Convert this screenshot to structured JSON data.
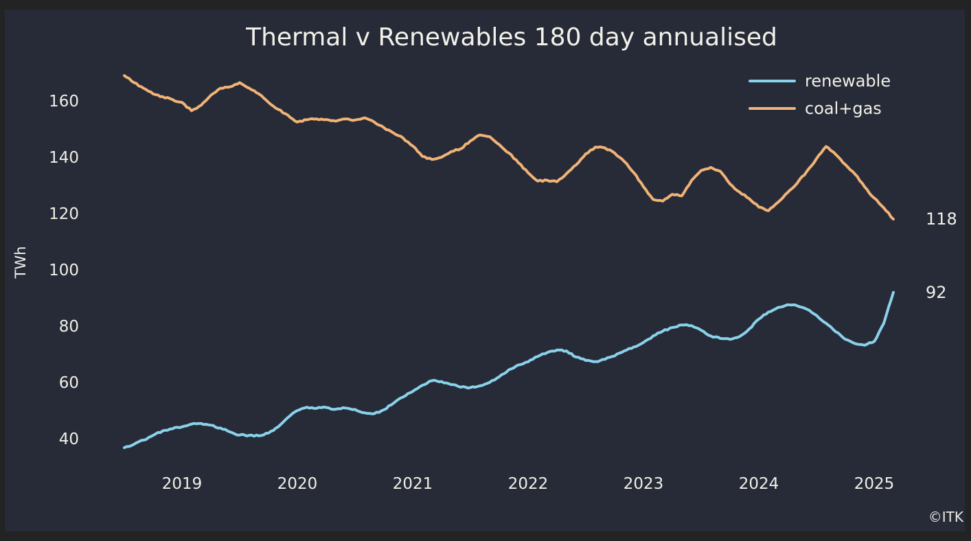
{
  "page": {
    "watermark": "©ITK"
  },
  "chart_data": {
    "type": "line",
    "title": "Thermal v Renewables 180 day annualised",
    "xlabel": "",
    "ylabel": "TWh",
    "grid": false,
    "legend_position": "upper right",
    "background_color": "#272b38",
    "frame_color": "#232323",
    "text_color": "#f0efe7",
    "x_tick_labels": [
      "2019",
      "2020",
      "2021",
      "2022",
      "2023",
      "2024",
      "2025"
    ],
    "y_tick_labels": [
      "160",
      "140",
      "120",
      "100",
      "80",
      "60",
      "40"
    ],
    "y_tick_values": [
      160,
      140,
      120,
      100,
      80,
      60,
      40
    ],
    "ylim_approx": [
      31,
      173
    ],
    "x_start_month": "2018-07",
    "x_end_month": "2025-02",
    "x_unit": "month",
    "series": [
      {
        "name": "renewable",
        "color": "#8ad2eb",
        "end_label": "92",
        "values": [
          36.8,
          38.0,
          39.5,
          41.2,
          42.8,
          43.5,
          44.2,
          45.2,
          45.4,
          44.8,
          43.8,
          42.4,
          41.3,
          41.2,
          41.0,
          42.0,
          44.2,
          47.5,
          50.0,
          51.2,
          50.8,
          51.1,
          50.5,
          50.9,
          50.4,
          49.2,
          48.9,
          50.3,
          52.6,
          54.8,
          56.8,
          59.0,
          60.6,
          60.3,
          59.2,
          58.3,
          58.2,
          58.8,
          60.0,
          62.0,
          64.5,
          66.2,
          67.3,
          69.2,
          70.6,
          71.5,
          71.2,
          69.0,
          67.8,
          67.4,
          68.2,
          69.4,
          71.2,
          72.6,
          74.2,
          76.5,
          78.2,
          79.5,
          80.4,
          80.2,
          78.5,
          76.5,
          75.6,
          75.3,
          76.3,
          79.0,
          82.5,
          85.0,
          86.6,
          87.6,
          87.2,
          86.0,
          83.8,
          81.0,
          78.0,
          75.3,
          73.8,
          73.2,
          74.5,
          81.0,
          92.0
        ]
      },
      {
        "name": "coal+gas",
        "color": "#f1b376",
        "end_label": "118",
        "values": [
          169.0,
          166.5,
          164.5,
          162.5,
          161.5,
          160.5,
          159.5,
          156.5,
          158.5,
          162.0,
          164.5,
          165.0,
          166.5,
          164.5,
          162.5,
          159.5,
          157.0,
          155.0,
          152.5,
          153.3,
          153.6,
          153.4,
          152.8,
          153.6,
          153.2,
          154.0,
          152.5,
          150.5,
          148.6,
          146.8,
          144.0,
          140.3,
          139.2,
          140.0,
          142.0,
          143.0,
          145.8,
          147.9,
          147.3,
          144.5,
          141.5,
          138.0,
          134.5,
          131.5,
          131.8,
          131.3,
          134.2,
          137.3,
          141.2,
          143.6,
          143.3,
          141.5,
          138.5,
          134.5,
          129.5,
          125.0,
          124.4,
          126.8,
          126.3,
          131.7,
          135.3,
          136.4,
          135.0,
          130.5,
          127.6,
          125.3,
          122.3,
          121.0,
          124.0,
          127.5,
          130.8,
          135.0,
          139.5,
          143.8,
          141.0,
          137.4,
          134.0,
          129.5,
          125.5,
          122.0,
          118.0
        ]
      }
    ]
  }
}
